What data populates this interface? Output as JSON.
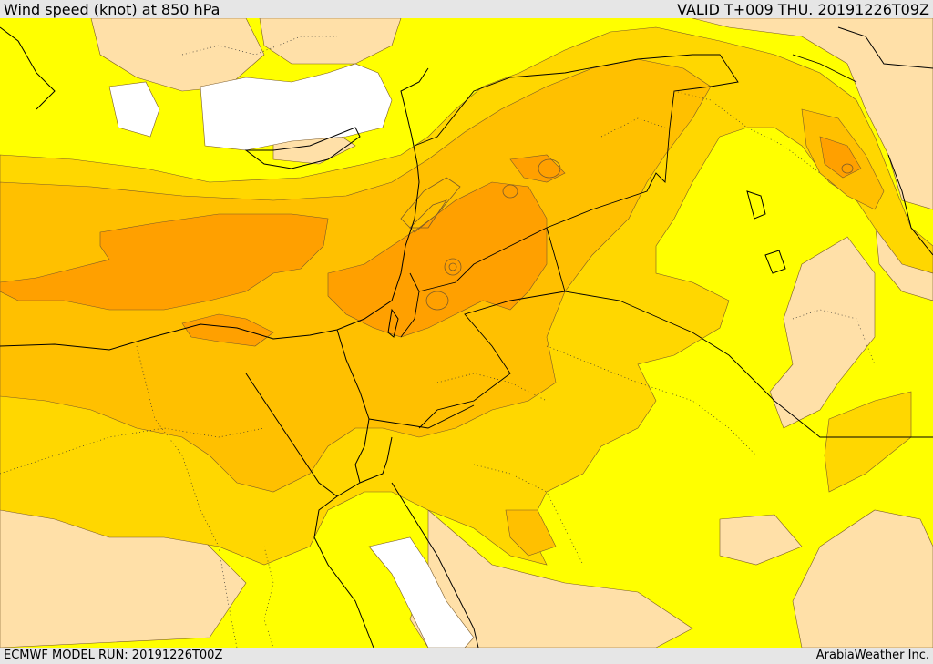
{
  "header": {
    "title": "Wind speed (knot) at 850 hPa",
    "valid": "VALID T+009 THU. 20191226T09Z"
  },
  "footer": {
    "run": "ECMWF MODEL RUN: 20191226T00Z",
    "brand": "ArabiaWeather Inc."
  },
  "palette": {
    "calm": "#ffffff",
    "very_light": "#ffe0a8",
    "light": "#ffff00",
    "moderate": "#ffd700",
    "fresh": "#ffc000",
    "strong": "#ffa000",
    "contour": "#7a5a2a",
    "border": "#000000"
  }
}
